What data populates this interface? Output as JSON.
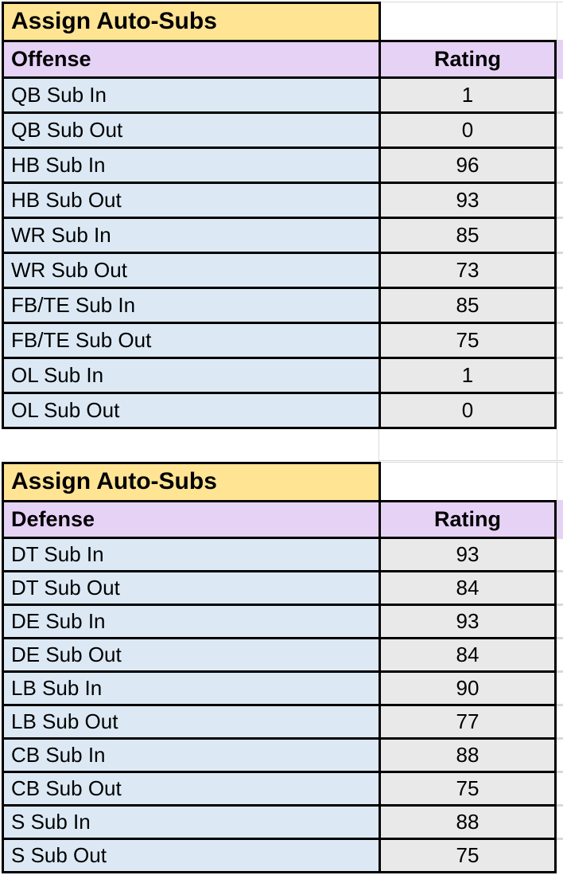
{
  "colors": {
    "title_fill": "#FFE494",
    "header_fill": "#E6D2F5",
    "label_fill": "#DCE9F5",
    "value_fill": "#EAE9E9",
    "border": "#000000",
    "gridline": "#D9D9D9",
    "text": "#000000",
    "background": "#FFFFFF"
  },
  "tables": [
    {
      "id": "offense",
      "title": "Assign Auto-Subs",
      "header": {
        "label": "Offense",
        "value": "Rating"
      },
      "rows": [
        {
          "label": "QB Sub In",
          "rating": "1"
        },
        {
          "label": "QB Sub Out",
          "rating": "0"
        },
        {
          "label": "HB Sub In",
          "rating": "96"
        },
        {
          "label": "HB Sub Out",
          "rating": "93"
        },
        {
          "label": "WR Sub In",
          "rating": "85"
        },
        {
          "label": "WR Sub Out",
          "rating": "73"
        },
        {
          "label": "FB/TE Sub In",
          "rating": "85"
        },
        {
          "label": "FB/TE Sub Out",
          "rating": "75"
        },
        {
          "label": "OL Sub In",
          "rating": "1"
        },
        {
          "label": "OL Sub Out",
          "rating": "0"
        }
      ]
    },
    {
      "id": "defense",
      "title": "Assign Auto-Subs",
      "header": {
        "label": "Defense",
        "value": "Rating"
      },
      "rows": [
        {
          "label": "DT Sub In",
          "rating": "93"
        },
        {
          "label": "DT Sub Out",
          "rating": "84"
        },
        {
          "label": "DE Sub In",
          "rating": "93"
        },
        {
          "label": "DE Sub Out",
          "rating": "84"
        },
        {
          "label": "LB Sub In",
          "rating": "90"
        },
        {
          "label": "LB Sub Out",
          "rating": "77"
        },
        {
          "label": "CB Sub In",
          "rating": "88"
        },
        {
          "label": "CB Sub Out",
          "rating": "75"
        },
        {
          "label": "S Sub In",
          "rating": "88"
        },
        {
          "label": "S Sub Out",
          "rating": "75"
        }
      ]
    }
  ]
}
